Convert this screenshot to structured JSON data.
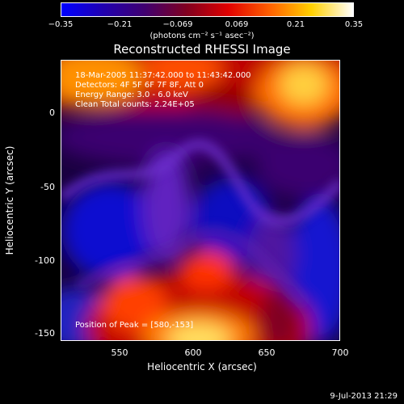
{
  "colorbar": {
    "ticks": [
      "−0.35",
      "−0.21",
      "−0.069",
      "0.069",
      "0.21",
      "0.35"
    ],
    "units": "(photons cm⁻² s⁻¹ asec⁻²)",
    "colors": [
      "#0000ff",
      "#2000b0",
      "#400070",
      "#800020",
      "#e00000",
      "#ff6000",
      "#ffd000",
      "#ffffff"
    ]
  },
  "title": "Reconstructed RHESSI Image",
  "info": {
    "line1": "18-Mar-2005 11:37:42.000 to 11:43:42.000",
    "line2": "Detectors: 4F 5F 6F 7F 8F, Att 0",
    "line3": "Energy Range: 3.0 - 6.0 keV",
    "line4": "Clean    Total counts: 2.24E+05",
    "peak": "Position of Peak = [580,-153]"
  },
  "axes": {
    "x_label": "Heliocentric X (arcsec)",
    "y_label": "Heliocentric Y (arcsec)",
    "x_ticks": [
      "550",
      "600",
      "650",
      "700"
    ],
    "y_ticks": [
      "0",
      "-50",
      "-100",
      "-150"
    ]
  },
  "timestamp": "9-Jul-2013 21:29"
}
